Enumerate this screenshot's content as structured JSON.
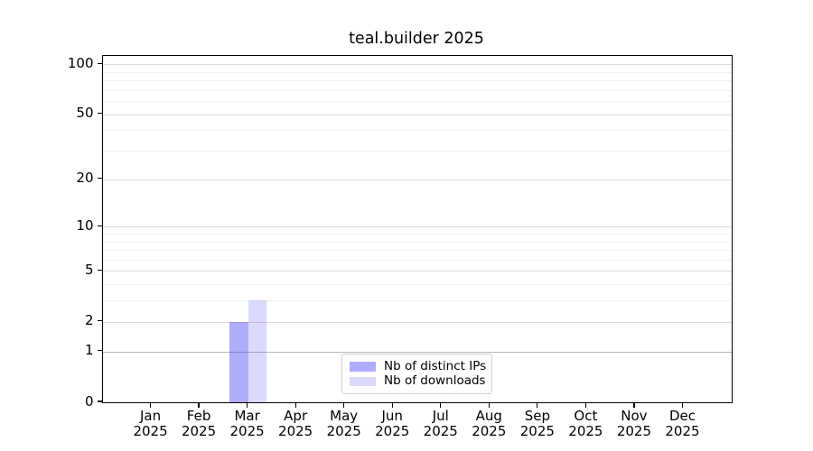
{
  "chart_data": {
    "type": "bar",
    "title": "teal.builder 2025",
    "categories": [
      "Jan 2025",
      "Feb 2025",
      "Mar 2025",
      "Apr 2025",
      "May 2025",
      "Jun 2025",
      "Jul 2025",
      "Aug 2025",
      "Sep 2025",
      "Oct 2025",
      "Nov 2025",
      "Dec 2025"
    ],
    "series": [
      {
        "name": "Nb of distinct IPs",
        "color": "rgba(60,60,245,0.42)",
        "values": [
          0,
          0,
          2,
          0,
          0,
          0,
          0,
          0,
          0,
          0,
          0,
          0
        ]
      },
      {
        "name": "Nb of downloads",
        "color": "rgba(60,60,245,0.19)",
        "values": [
          0,
          0,
          3,
          0,
          0,
          0,
          0,
          0,
          0,
          0,
          0,
          0
        ]
      }
    ],
    "xlabel": "",
    "ylabel": "",
    "yscale": "log1p",
    "ylim": [
      0,
      112
    ],
    "y_major_ticks": [
      0,
      1,
      2,
      5,
      10,
      20,
      50,
      100
    ],
    "y_minor_ticks": [
      3,
      4,
      6,
      7,
      8,
      9,
      30,
      40,
      60,
      70,
      80,
      90
    ],
    "grid": true,
    "legend_position": "lower center"
  },
  "legend": {
    "items": [
      {
        "label": "Nb of distinct IPs",
        "swatch_color": "rgba(60,60,245,0.42)"
      },
      {
        "label": "Nb of downloads",
        "swatch_color": "rgba(60,60,245,0.19)"
      }
    ]
  },
  "colors": {
    "grid_major": "#dcdcdc",
    "grid_minor": "#f0f0f0",
    "grid_unit_line": "#b5b5b5",
    "spine": "#000000",
    "text": "#000000",
    "legend_border": "#d2d2d2",
    "background": "#ffffff"
  }
}
